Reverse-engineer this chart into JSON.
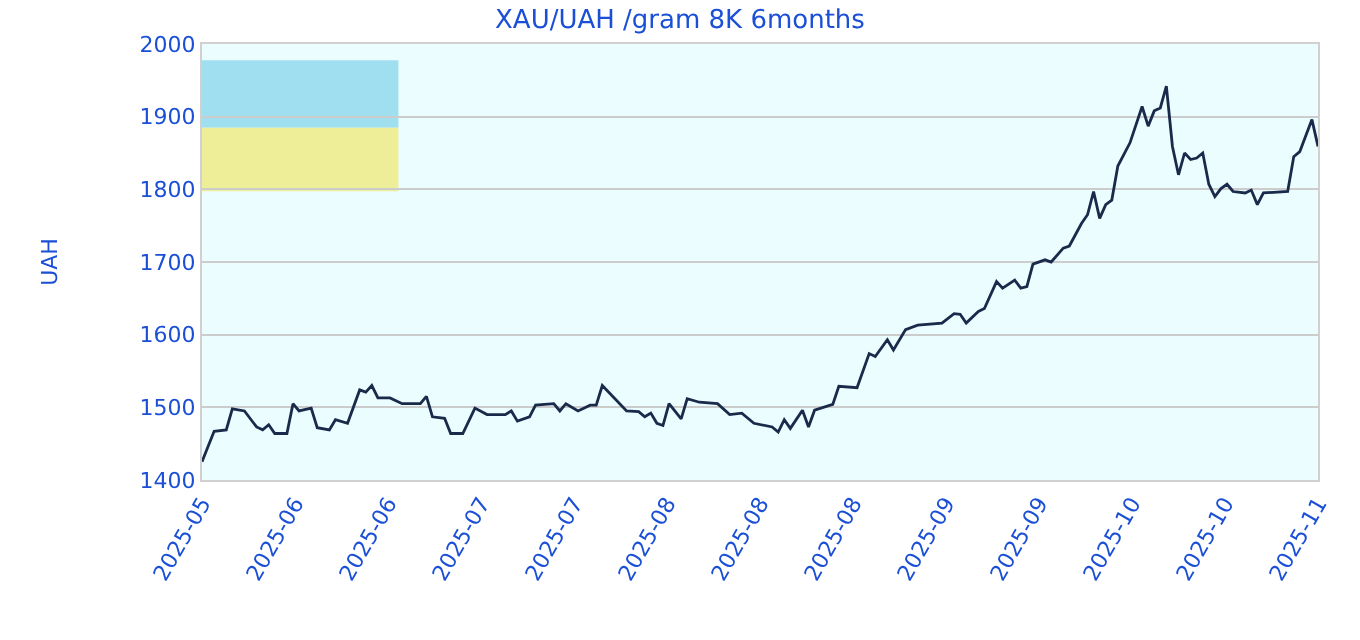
{
  "chart_data": {
    "type": "line",
    "title": "XAU/UAH /gram 8K 6months",
    "ylabel": "UAH",
    "color": "#1a2a4a",
    "grid": "y",
    "legend": false,
    "xlim": [
      "2025-05-04",
      "2025-11-04"
    ],
    "ylim": [
      1400,
      2000
    ],
    "yticks": [
      1400,
      1500,
      1600,
      1700,
      1800,
      1900,
      2000
    ],
    "xticks": [
      {
        "value": "2025-05-04",
        "label": "2025-05"
      },
      {
        "value": "2025-05-19T08:00",
        "label": "2025-06"
      },
      {
        "value": "2025-06-03T16:00",
        "label": "2025-06"
      },
      {
        "value": "2025-06-19",
        "label": "2025-07"
      },
      {
        "value": "2025-07-04T08:00",
        "label": "2025-07"
      },
      {
        "value": "2025-07-19T16:00",
        "label": "2025-08"
      },
      {
        "value": "2025-08-04",
        "label": "2025-08"
      },
      {
        "value": "2025-08-19T08:00",
        "label": "2025-08"
      },
      {
        "value": "2025-09-03T16:00",
        "label": "2025-09"
      },
      {
        "value": "2025-09-19",
        "label": "2025-09"
      },
      {
        "value": "2025-10-04T08:00",
        "label": "2025-10"
      },
      {
        "value": "2025-10-19T16:00",
        "label": "2025-10"
      },
      {
        "value": "2025-11-04",
        "label": "2025-11"
      }
    ],
    "x": [
      "2025-05-04",
      "2025-05-05",
      "2025-05-06",
      "2025-05-08",
      "2025-05-09",
      "2025-05-11",
      "2025-05-13",
      "2025-05-14",
      "2025-05-15",
      "2025-05-16",
      "2025-05-18",
      "2025-05-19",
      "2025-05-20",
      "2025-05-22",
      "2025-05-23",
      "2025-05-25",
      "2025-05-26",
      "2025-05-28",
      "2025-05-30",
      "2025-05-31",
      "2025-06-01",
      "2025-06-02",
      "2025-06-04",
      "2025-06-06",
      "2025-06-09",
      "2025-06-10",
      "2025-06-11",
      "2025-06-13",
      "2025-06-14",
      "2025-06-16",
      "2025-06-18",
      "2025-06-20",
      "2025-06-23",
      "2025-06-24",
      "2025-06-25",
      "2025-06-27",
      "2025-06-28",
      "2025-07-01",
      "2025-07-02",
      "2025-07-03",
      "2025-07-05",
      "2025-07-07",
      "2025-07-08",
      "2025-07-09",
      "2025-07-13",
      "2025-07-15",
      "2025-07-16",
      "2025-07-17",
      "2025-07-18",
      "2025-07-19",
      "2025-07-20",
      "2025-07-22",
      "2025-07-23",
      "2025-07-25",
      "2025-07-28",
      "2025-07-30",
      "2025-08-01",
      "2025-08-03",
      "2025-08-06",
      "2025-08-07",
      "2025-08-08",
      "2025-08-09",
      "2025-08-11",
      "2025-08-12",
      "2025-08-13",
      "2025-08-16",
      "2025-08-17",
      "2025-08-20",
      "2025-08-22",
      "2025-08-23",
      "2025-08-25",
      "2025-08-26",
      "2025-08-28",
      "2025-08-30",
      "2025-09-03",
      "2025-09-05",
      "2025-09-06",
      "2025-09-07",
      "2025-09-09",
      "2025-09-10",
      "2025-09-12",
      "2025-09-13",
      "2025-09-15",
      "2025-09-16",
      "2025-09-17",
      "2025-09-18",
      "2025-09-20",
      "2025-09-21",
      "2025-09-23",
      "2025-09-24",
      "2025-09-26",
      "2025-09-27",
      "2025-09-28",
      "2025-09-29",
      "2025-09-30",
      "2025-10-01",
      "2025-10-02",
      "2025-10-04",
      "2025-10-06",
      "2025-10-07",
      "2025-10-08",
      "2025-10-09",
      "2025-10-10",
      "2025-10-11",
      "2025-10-12",
      "2025-10-13",
      "2025-10-14",
      "2025-10-15",
      "2025-10-16",
      "2025-10-17",
      "2025-10-18",
      "2025-10-19",
      "2025-10-20",
      "2025-10-21",
      "2025-10-23",
      "2025-10-24",
      "2025-10-25",
      "2025-10-26",
      "2025-10-30",
      "2025-10-31",
      "2025-11-01",
      "2025-11-03",
      "2025-11-04"
    ],
    "values": [
      1425,
      1446,
      1467,
      1469,
      1498,
      1495,
      1473,
      1469,
      1476,
      1464,
      1464,
      1505,
      1495,
      1499,
      1472,
      1469,
      1483,
      1478,
      1524,
      1521,
      1530,
      1513,
      1513,
      1505,
      1505,
      1515,
      1487,
      1485,
      1464,
      1464,
      1499,
      1490,
      1490,
      1495,
      1481,
      1487,
      1503,
      1505,
      1495,
      1505,
      1495,
      1503,
      1503,
      1530,
      1495,
      1494,
      1487,
      1492,
      1478,
      1475,
      1505,
      1484,
      1512,
      1507,
      1505,
      1490,
      1492,
      1478,
      1473,
      1466,
      1483,
      1471,
      1496,
      1473,
      1496,
      1504,
      1529,
      1527,
      1574,
      1570,
      1593,
      1579,
      1607,
      1613,
      1616,
      1629,
      1628,
      1616,
      1632,
      1636,
      1673,
      1664,
      1675,
      1664,
      1666,
      1697,
      1703,
      1700,
      1719,
      1722,
      1753,
      1765,
      1797,
      1760,
      1779,
      1785,
      1832,
      1864,
      1914,
      1887,
      1908,
      1912,
      1942,
      1859,
      1820,
      1850,
      1841,
      1843,
      1850,
      1807,
      1790,
      1801,
      1807,
      1797,
      1795,
      1799,
      1779,
      1795,
      1797,
      1845,
      1852,
      1896,
      1859
    ]
  }
}
